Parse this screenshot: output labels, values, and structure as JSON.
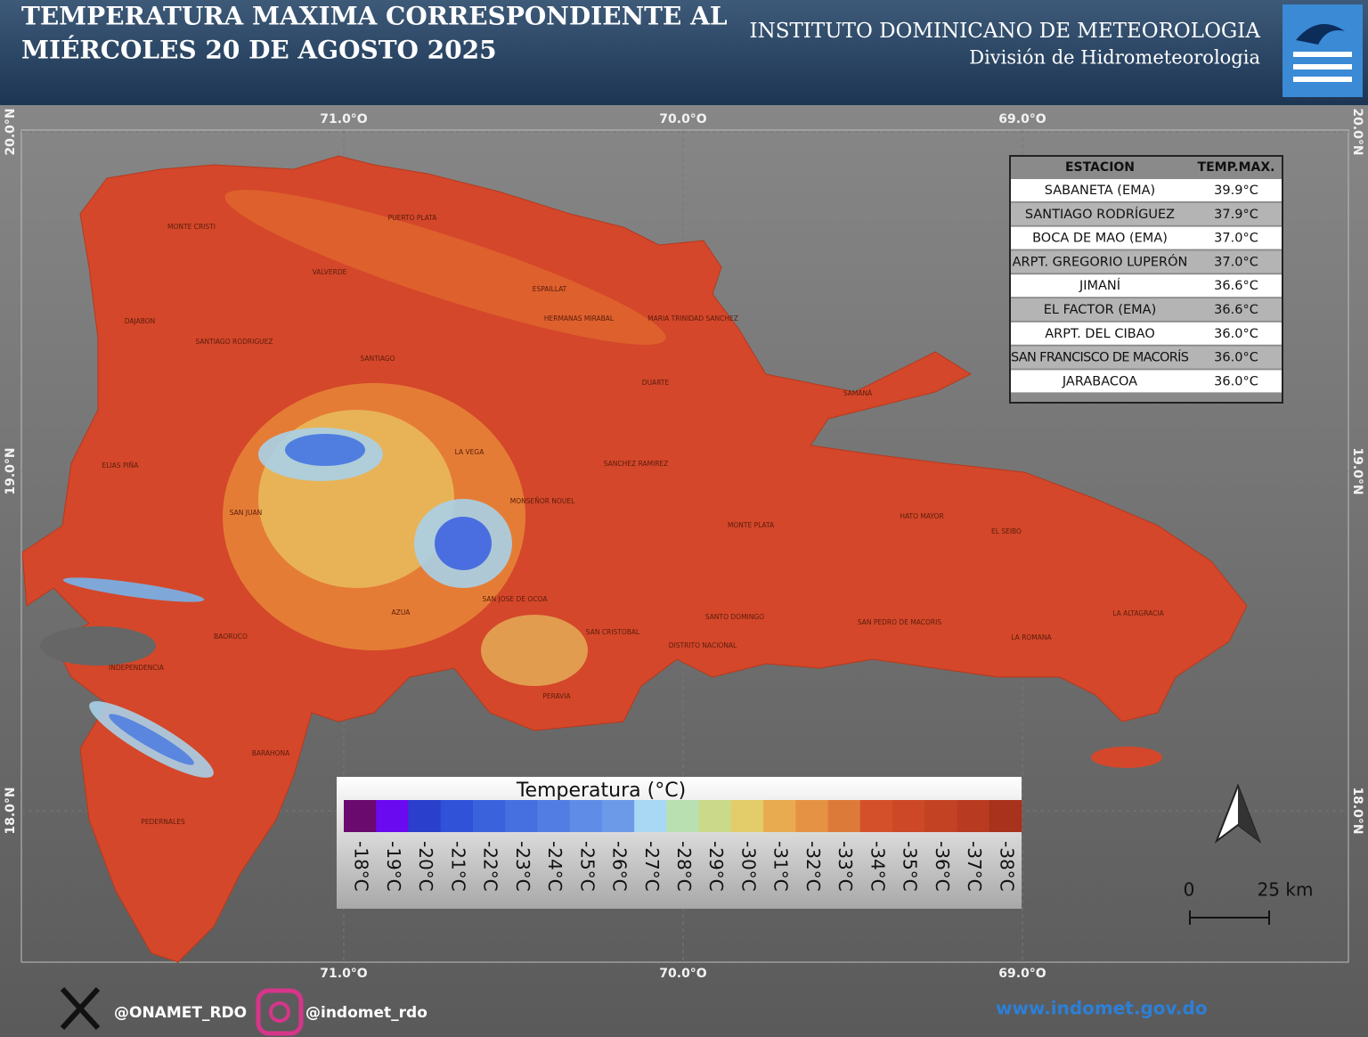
{
  "header": {
    "title_lines": [
      "TEMPERATURA MAXIMA CORRESPONDIENTE AL",
      "MIÉRCOLES 20 DE AGOSTO 2025"
    ],
    "institute": "INSTITUTO DOMINICANO DE METEOROLOGIA",
    "division": "División de Hidrometeorologia"
  },
  "map": {
    "longitudes": [
      "71.0°O",
      "70.0°O",
      "69.0°O"
    ],
    "latitudes": [
      "20.0°N",
      "19.0°N",
      "18.0°N"
    ],
    "places": [
      "MONTE CRISTI",
      "PUERTO PLATA",
      "VALVERDE",
      "ESPAILLAT",
      "HERMANAS MIRABAL",
      "MARIA TRINIDAD SANCHEZ",
      "DAJABON",
      "SANTIAGO RODRIGUEZ",
      "SANTIAGO",
      "DUARTE",
      "SAMANÁ",
      "LA VEGA",
      "ELIAS PIÑA",
      "SANCHEZ RAMIREZ",
      "MONSEÑOR NOUEL",
      "SAN JUAN",
      "MONTE PLATA",
      "HATO MAYOR",
      "EL SEIBO",
      "SAN JOSE DE OCOA",
      "AZUA",
      "SANTO DOMINGO",
      "SAN PEDRO DE MACORIS",
      "LA ALTAGRACIA",
      "SAN CRISTOBAL",
      "BAORUCO",
      "LA ROMANA",
      "DISTRITO NACIONAL",
      "INDEPENDENCIA",
      "PERAVIA",
      "BARAHONA",
      "PEDERNALES"
    ]
  },
  "table": {
    "header": [
      "ESTACION",
      "TEMP.MAX."
    ],
    "rows": [
      [
        "SABANETA (EMA)",
        "39.9°C"
      ],
      [
        "SANTIAGO RODRÍGUEZ",
        "37.9°C"
      ],
      [
        "BOCA DE MAO (EMA)",
        "37.0°C"
      ],
      [
        "ARPT. GREGORIO LUPERÓN",
        "37.0°C"
      ],
      [
        "JIMANÍ",
        "36.6°C"
      ],
      [
        "EL FACTOR (EMA)",
        "36.6°C"
      ],
      [
        "ARPT. DEL CIBAO",
        "36.0°C"
      ],
      [
        "SAN FRANCISCO DE MACORÍS",
        "36.0°C"
      ],
      [
        "JARABACOA",
        "36.0°C"
      ]
    ]
  },
  "legend": {
    "title": "Temperatura (°C)",
    "labels": [
      "-18°C",
      "-19°C",
      "-20°C",
      "-21°C",
      "-22°C",
      "-23°C",
      "-24°C",
      "-25°C",
      "-26°C",
      "-27°C",
      "-28°C",
      "-29°C",
      "-30°C",
      "-31°C",
      "-32°C",
      "-33°C",
      "-34°C",
      "-35°C",
      "-36°C",
      "-37°C",
      "-38°C"
    ],
    "colors": [
      "#6a0a6e",
      "#6a0af0",
      "#2a3fcc",
      "#2f52d8",
      "#3a62dc",
      "#4670e0",
      "#527ee4",
      "#5f8ce6",
      "#6c9ae8",
      "#a8d8f4",
      "#b8e0b0",
      "#cbd98a",
      "#e3cc6a",
      "#e8ab50",
      "#e69244",
      "#dc7a3a",
      "#d4502a",
      "#cc4826",
      "#c44224",
      "#b83a20",
      "#a8321c"
    ]
  },
  "scale": {
    "start": "0",
    "end": "25 km"
  },
  "footer": {
    "twitter": "@ONAMET_RDO",
    "instagram": "@indomet_rdo",
    "website": "www.indomet.gov.do"
  }
}
